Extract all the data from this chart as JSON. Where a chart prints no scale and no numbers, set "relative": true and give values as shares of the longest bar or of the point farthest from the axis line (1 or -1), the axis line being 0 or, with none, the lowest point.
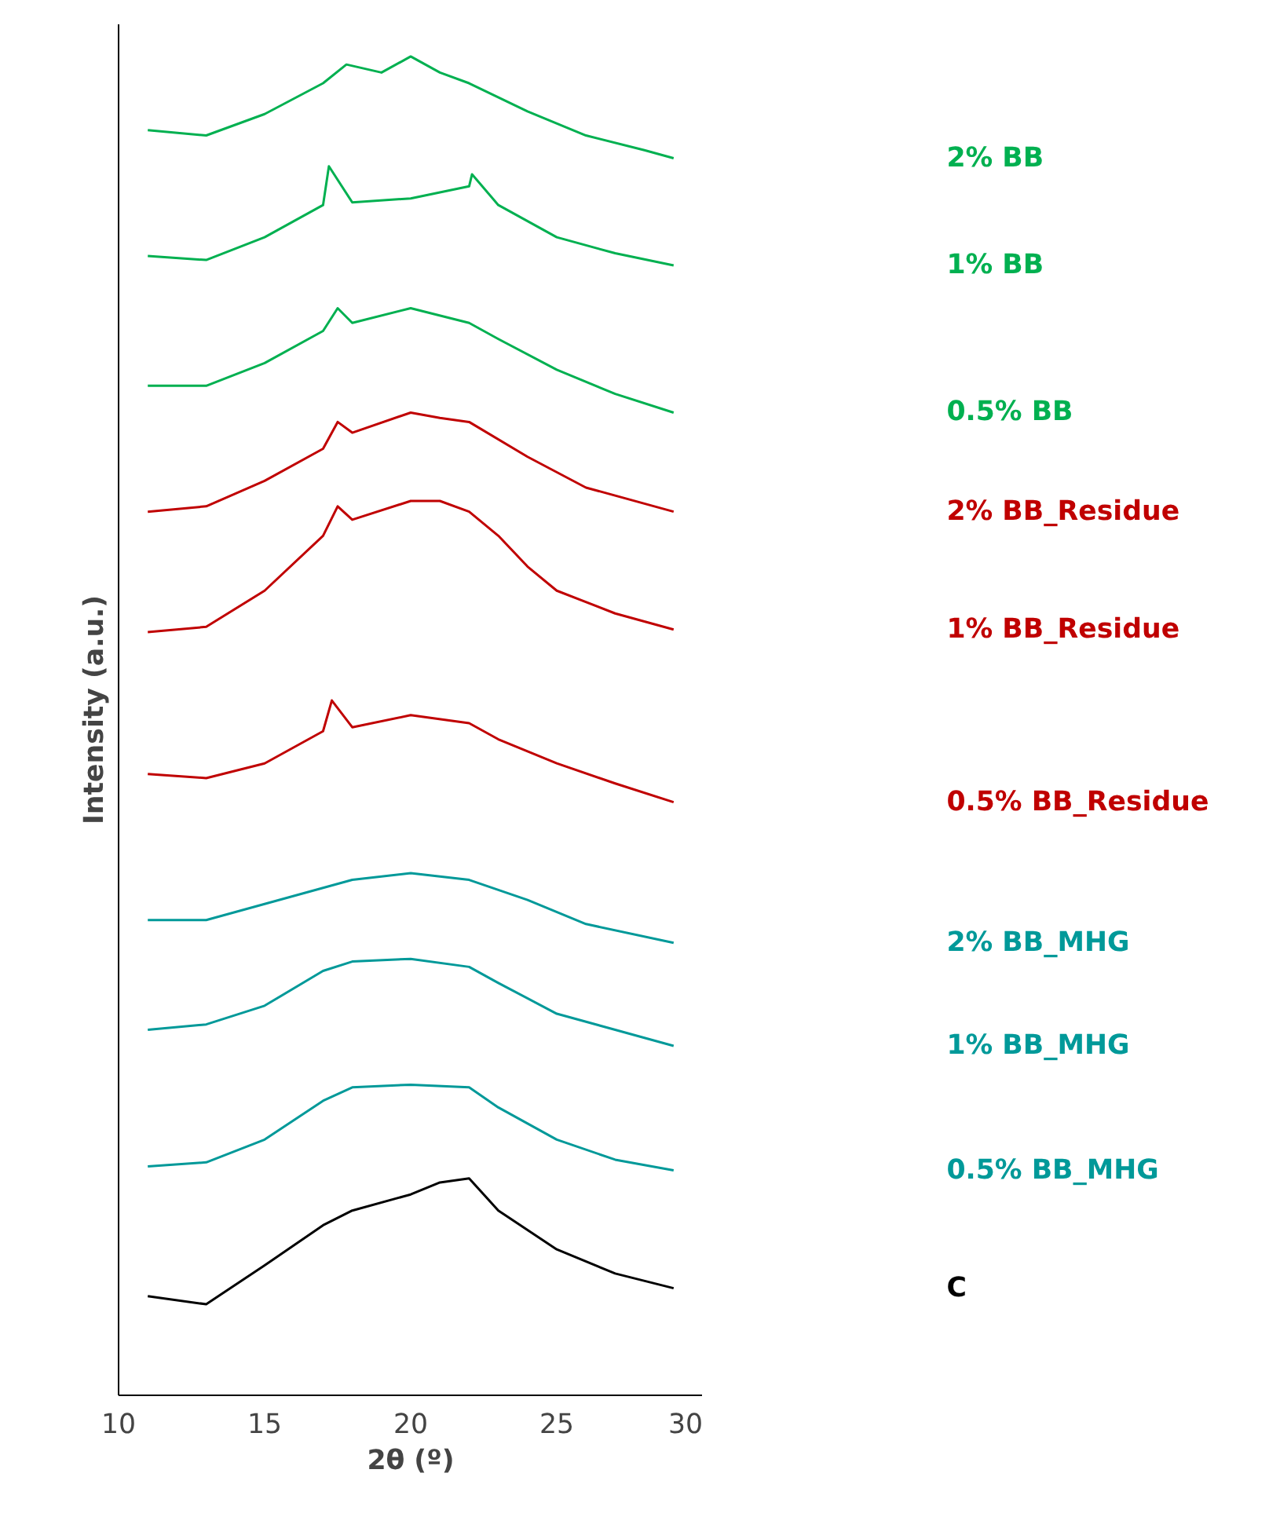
{
  "chart_data": {
    "type": "line",
    "relative": true,
    "xlabel": "2θ (º)",
    "ylabel": "Intensity (a.u.)",
    "xlim": [
      10,
      30
    ],
    "xticks": [
      10,
      15,
      20,
      25,
      30
    ],
    "grid": false,
    "legend": false,
    "tick_labels": "x",
    "line_style": "solid",
    "marker": "none",
    "series": [
      {
        "name": "2% BB",
        "color": "#00b050",
        "x": [
          11,
          13,
          15,
          17,
          17.8,
          19,
          20,
          21,
          22,
          24,
          26,
          28,
          29
        ],
        "values": [
          0.945,
          0.941,
          0.957,
          0.98,
          0.994,
          0.988,
          1,
          0.988,
          0.98,
          0.959,
          0.941,
          0.93,
          0.924
        ]
      },
      {
        "name": "1% BB",
        "color": "#00b050",
        "x": [
          11,
          13,
          15,
          17,
          17.2,
          18,
          20,
          22,
          22.1,
          23,
          25,
          27,
          29
        ],
        "values": [
          0.851,
          0.848,
          0.865,
          0.889,
          0.918,
          0.891,
          0.894,
          0.903,
          0.912,
          0.889,
          0.865,
          0.853,
          0.844
        ]
      },
      {
        "name": "0.5% BB",
        "color": "#00b050",
        "x": [
          11,
          13,
          15,
          17,
          17.5,
          18,
          20,
          22,
          23,
          25,
          27,
          29
        ],
        "values": [
          0.754,
          0.754,
          0.771,
          0.795,
          0.812,
          0.801,
          0.812,
          0.801,
          0.789,
          0.766,
          0.748,
          0.734
        ]
      },
      {
        "name": "2% BB_Residue",
        "color": "#c00000",
        "x": [
          11,
          13,
          15,
          17,
          17.5,
          18,
          20,
          21,
          22,
          24,
          26,
          29
        ],
        "values": [
          0.66,
          0.664,
          0.683,
          0.707,
          0.727,
          0.719,
          0.734,
          0.73,
          0.727,
          0.701,
          0.678,
          0.66
        ]
      },
      {
        "name": "1% BB_Residue",
        "color": "#c00000",
        "x": [
          11,
          13,
          15,
          17,
          17.5,
          18,
          20,
          21,
          22,
          23,
          24,
          25,
          27,
          29
        ],
        "values": [
          0.57,
          0.574,
          0.601,
          0.642,
          0.664,
          0.654,
          0.668,
          0.668,
          0.66,
          0.642,
          0.619,
          0.601,
          0.584,
          0.572
        ]
      },
      {
        "name": "0.5% BB_Residue",
        "color": "#c00000",
        "x": [
          11,
          13,
          15,
          17,
          17.3,
          18,
          20,
          22,
          23,
          25,
          27,
          29
        ],
        "values": [
          0.464,
          0.461,
          0.472,
          0.496,
          0.519,
          0.499,
          0.508,
          0.502,
          0.49,
          0.472,
          0.457,
          0.443
        ]
      },
      {
        "name": "2% BB_MHG",
        "color": "#009999",
        "x": [
          11,
          13,
          15,
          17,
          18,
          20,
          22,
          24,
          26,
          29
        ],
        "values": [
          0.355,
          0.355,
          0.367,
          0.379,
          0.385,
          0.39,
          0.385,
          0.37,
          0.352,
          0.338
        ]
      },
      {
        "name": "1% BB_MHG",
        "color": "#009999",
        "x": [
          11,
          13,
          15,
          17,
          18,
          20,
          22,
          23,
          25,
          27,
          29
        ],
        "values": [
          0.273,
          0.277,
          0.291,
          0.317,
          0.324,
          0.326,
          0.32,
          0.308,
          0.285,
          0.273,
          0.261
        ]
      },
      {
        "name": "0.5% BB_MHG",
        "color": "#009999",
        "x": [
          11,
          13,
          15,
          17,
          18,
          20,
          22,
          23,
          25,
          27,
          29
        ],
        "values": [
          0.171,
          0.174,
          0.191,
          0.22,
          0.23,
          0.232,
          0.23,
          0.215,
          0.191,
          0.176,
          0.168
        ]
      },
      {
        "name": "C",
        "color": "#000000",
        "x": [
          11,
          13,
          15,
          17,
          18,
          20,
          21,
          22,
          23,
          25,
          27,
          29
        ],
        "values": [
          0.074,
          0.068,
          0.097,
          0.127,
          0.138,
          0.15,
          0.159,
          0.162,
          0.138,
          0.109,
          0.091,
          0.08
        ]
      }
    ]
  }
}
